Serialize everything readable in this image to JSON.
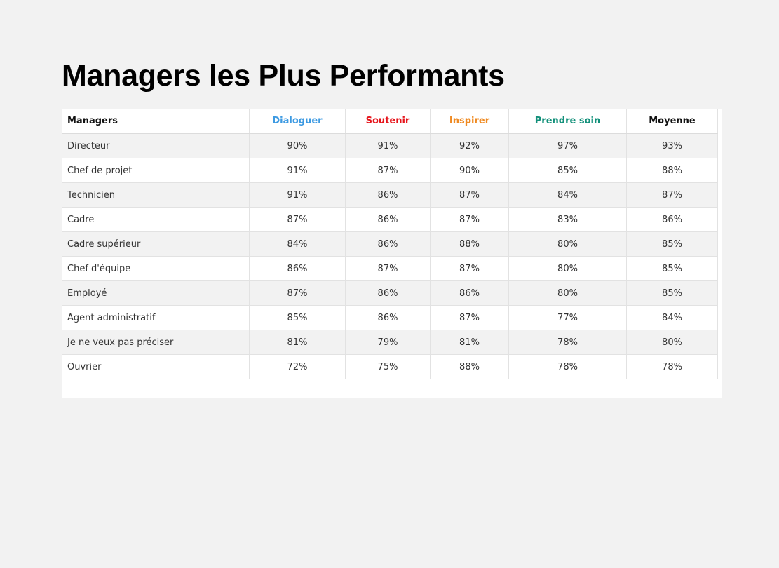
{
  "page": {
    "title": "Managers les Plus Performants"
  },
  "table": {
    "headers": {
      "managers": "Managers",
      "dialoguer": "Dialoguer",
      "soutenir": "Soutenir",
      "inspirer": "Inspirer",
      "prendre_soin": "Prendre soin",
      "moyenne": "Moyenne"
    },
    "header_colors": {
      "dialoguer": "#3d9ae2",
      "soutenir": "#e6141b",
      "inspirer": "#ef8a22",
      "prendre_soin": "#12907a"
    },
    "rows": [
      {
        "manager": "Directeur",
        "dialoguer": "90%",
        "soutenir": "91%",
        "inspirer": "92%",
        "prendre_soin": "97%",
        "moyenne": "93%"
      },
      {
        "manager": "Chef de projet",
        "dialoguer": "91%",
        "soutenir": "87%",
        "inspirer": "90%",
        "prendre_soin": "85%",
        "moyenne": "88%"
      },
      {
        "manager": "Technicien",
        "dialoguer": "91%",
        "soutenir": "86%",
        "inspirer": "87%",
        "prendre_soin": "84%",
        "moyenne": "87%"
      },
      {
        "manager": "Cadre",
        "dialoguer": "87%",
        "soutenir": "86%",
        "inspirer": "87%",
        "prendre_soin": "83%",
        "moyenne": "86%"
      },
      {
        "manager": "Cadre supérieur",
        "dialoguer": "84%",
        "soutenir": "86%",
        "inspirer": "88%",
        "prendre_soin": "80%",
        "moyenne": "85%"
      },
      {
        "manager": "Chef d'équipe",
        "dialoguer": "86%",
        "soutenir": "87%",
        "inspirer": "87%",
        "prendre_soin": "80%",
        "moyenne": "85%"
      },
      {
        "manager": "Employé",
        "dialoguer": "87%",
        "soutenir": "86%",
        "inspirer": "86%",
        "prendre_soin": "80%",
        "moyenne": "85%"
      },
      {
        "manager": "Agent administratif",
        "dialoguer": "85%",
        "soutenir": "86%",
        "inspirer": "87%",
        "prendre_soin": "77%",
        "moyenne": "84%"
      },
      {
        "manager": "Je ne veux pas préciser",
        "dialoguer": "81%",
        "soutenir": "79%",
        "inspirer": "81%",
        "prendre_soin": "78%",
        "moyenne": "80%"
      },
      {
        "manager": "Ouvrier",
        "dialoguer": "72%",
        "soutenir": "75%",
        "inspirer": "88%",
        "prendre_soin": "78%",
        "moyenne": "78%"
      }
    ]
  }
}
